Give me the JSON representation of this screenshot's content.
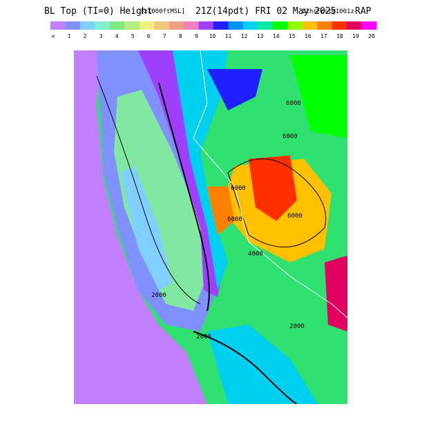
{
  "title": {
    "main": "BL Top (TI=0) Height",
    "units": "[x1000ftMSL]",
    "time": "21Z(14pdt) FRI 02 May 2025",
    "forecast": "12hrFcst@1001z",
    "model": "RAP"
  },
  "legend": {
    "labels": [
      "<",
      1,
      2,
      3,
      4,
      5,
      6,
      7,
      8,
      9,
      10,
      11,
      12,
      13,
      14,
      15,
      16,
      17,
      18,
      19,
      20
    ],
    "colors": [
      "#c080ff",
      "#8090ff",
      "#80d0ff",
      "#80f0d0",
      "#80e880",
      "#b0f080",
      "#f0f080",
      "#f0c880",
      "#f0a080",
      "#f080c0",
      "#a040ff",
      "#2020ff",
      "#0090ff",
      "#00d0f0",
      "#00e8a0",
      "#00ff00",
      "#90ff00",
      "#ffc000",
      "#ff8000",
      "#ff3000",
      "#e00060",
      "#ff00ff"
    ]
  },
  "map": {
    "contour_labels": [
      "6000",
      "6000",
      "6000",
      "6000",
      "6000",
      "2000",
      "2000",
      "2000",
      "4000"
    ]
  }
}
